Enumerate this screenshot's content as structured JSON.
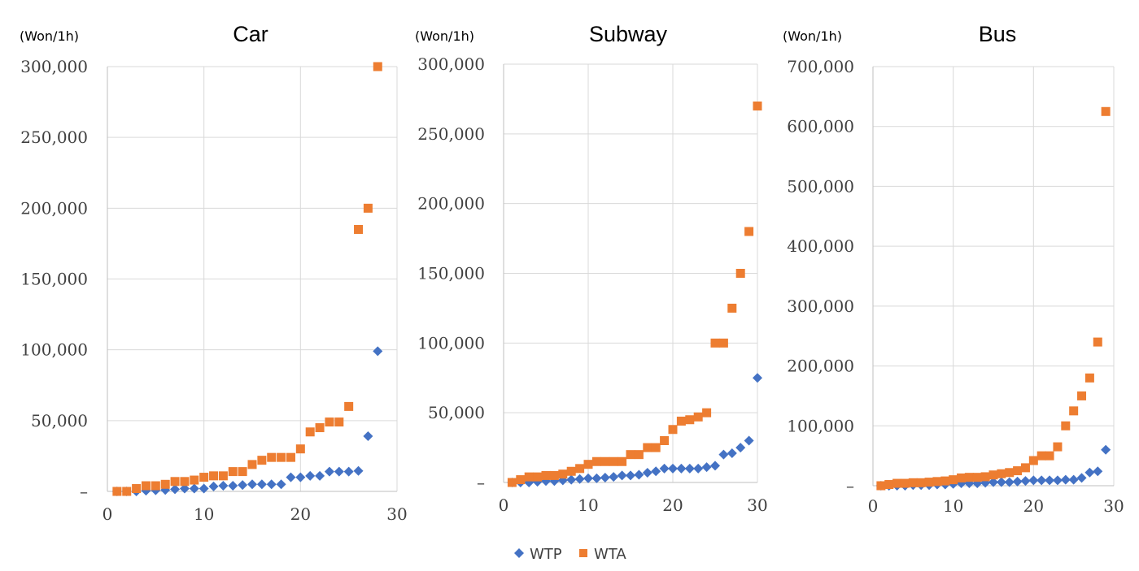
{
  "legend": {
    "items": [
      {
        "label": "WTP",
        "color": "#4472c4",
        "marker": "diamond"
      },
      {
        "label": "WTA",
        "color": "#ed7d31",
        "marker": "square"
      }
    ]
  },
  "chart_data": [
    {
      "type": "scatter",
      "title": "Car",
      "unit_label": "(Won/1h)",
      "xlim": [
        0,
        30
      ],
      "ylim": [
        0,
        300000
      ],
      "xticks": [
        "0",
        "10",
        "20",
        "30"
      ],
      "yticks": [
        "–",
        "50,000",
        "100,000",
        "150,000",
        "200,000",
        "250,000",
        "300,000"
      ],
      "grid": true,
      "series": [
        {
          "name": "WTP",
          "x": [
            1,
            2,
            3,
            4,
            5,
            6,
            7,
            8,
            9,
            10,
            11,
            12,
            13,
            14,
            15,
            16,
            17,
            18,
            19,
            20,
            21,
            22,
            23,
            24,
            25,
            26,
            27,
            28
          ],
          "y": [
            0,
            0,
            0,
            500,
            800,
            1000,
            1500,
            2000,
            2000,
            2000,
            3500,
            4000,
            4000,
            4500,
            5000,
            5000,
            5000,
            5000,
            10000,
            10000,
            11000,
            11000,
            14000,
            14000,
            14000,
            14500,
            39000,
            99000
          ]
        },
        {
          "name": "WTA",
          "x": [
            1,
            2,
            3,
            4,
            5,
            6,
            7,
            8,
            9,
            10,
            11,
            12,
            13,
            14,
            15,
            16,
            17,
            18,
            19,
            20,
            21,
            22,
            23,
            24,
            25,
            26,
            27,
            28
          ],
          "y": [
            0,
            0,
            2000,
            4000,
            4000,
            5000,
            7000,
            7000,
            8000,
            10000,
            11000,
            11000,
            14000,
            14000,
            19000,
            22000,
            24000,
            24000,
            24000,
            30000,
            42000,
            45000,
            49000,
            49000,
            60000,
            185000,
            200000,
            300000
          ]
        }
      ]
    },
    {
      "type": "scatter",
      "title": "Subway",
      "unit_label": "(Won/1h)",
      "xlim": [
        0,
        30
      ],
      "ylim": [
        0,
        300000
      ],
      "xticks": [
        "0",
        "10",
        "20",
        "30"
      ],
      "yticks": [
        "–",
        "50,000",
        "100,000",
        "150,000",
        "200,000",
        "250,000",
        "300,000"
      ],
      "grid": true,
      "series": [
        {
          "name": "WTP",
          "x": [
            1,
            2,
            3,
            4,
            5,
            6,
            7,
            8,
            9,
            10,
            11,
            12,
            13,
            14,
            15,
            16,
            17,
            18,
            19,
            20,
            21,
            22,
            23,
            24,
            25,
            26,
            27,
            28,
            29,
            30
          ],
          "y": [
            0,
            0,
            0,
            500,
            1000,
            1000,
            1500,
            2000,
            2500,
            3000,
            3000,
            3500,
            4000,
            5000,
            5000,
            5500,
            7000,
            8000,
            10000,
            10000,
            10000,
            10000,
            10000,
            11000,
            12000,
            20000,
            21000,
            25000,
            30000,
            75000
          ]
        },
        {
          "name": "WTA",
          "x": [
            1,
            2,
            3,
            4,
            5,
            6,
            7,
            8,
            9,
            10,
            11,
            12,
            13,
            14,
            15,
            16,
            17,
            18,
            19,
            20,
            21,
            22,
            23,
            24,
            25,
            26,
            27,
            28,
            29,
            30
          ],
          "y": [
            0,
            2000,
            4000,
            4000,
            5000,
            5000,
            6000,
            8000,
            10000,
            13000,
            15000,
            15000,
            15000,
            15000,
            20000,
            20000,
            25000,
            25000,
            30000,
            38000,
            44000,
            45000,
            47000,
            50000,
            100000,
            100000,
            125000,
            150000,
            180000,
            270000
          ]
        }
      ]
    },
    {
      "type": "scatter",
      "title": "Bus",
      "unit_label": "(Won/1h)",
      "xlim": [
        0,
        30
      ],
      "ylim": [
        0,
        700000
      ],
      "xticks": [
        "0",
        "10",
        "20",
        "30"
      ],
      "yticks": [
        "–",
        "100,000",
        "200,000",
        "300,000",
        "400,000",
        "500,000",
        "600,000",
        "700,000"
      ],
      "grid": true,
      "series": [
        {
          "name": "WTP",
          "x": [
            1,
            2,
            3,
            4,
            5,
            6,
            7,
            8,
            9,
            10,
            11,
            12,
            13,
            14,
            15,
            16,
            17,
            18,
            19,
            20,
            21,
            22,
            23,
            24,
            25,
            26,
            27,
            28,
            29
          ],
          "y": [
            0,
            0,
            0,
            0,
            1000,
            1000,
            1000,
            2000,
            2000,
            3000,
            4000,
            4000,
            4000,
            5000,
            6000,
            6000,
            6000,
            7000,
            8000,
            9000,
            9000,
            9000,
            9000,
            10000,
            10000,
            13000,
            22000,
            24000,
            60000
          ]
        },
        {
          "name": "WTA",
          "x": [
            1,
            2,
            3,
            4,
            5,
            6,
            7,
            8,
            9,
            10,
            11,
            12,
            13,
            14,
            15,
            16,
            17,
            18,
            19,
            20,
            21,
            22,
            23,
            24,
            25,
            26,
            27,
            28,
            29
          ],
          "y": [
            0,
            2000,
            4000,
            4000,
            5000,
            5000,
            6000,
            7000,
            8000,
            10000,
            13000,
            14000,
            14000,
            15000,
            18000,
            20000,
            22000,
            25000,
            30000,
            42000,
            50000,
            50000,
            65000,
            100000,
            125000,
            150000,
            180000,
            240000,
            625000
          ]
        }
      ]
    }
  ]
}
